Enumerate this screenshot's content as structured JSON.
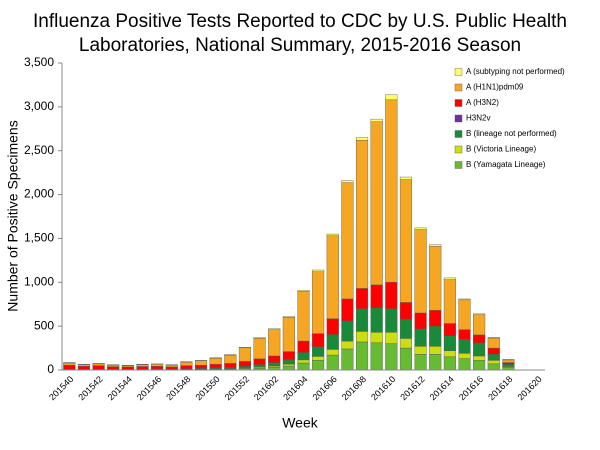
{
  "chart_data": {
    "type": "stacked-bar",
    "title": [
      "Influenza Positive Tests Reported to CDC by U.S. Public Health",
      "Laboratories, National Summary, 2015-2016 Season"
    ],
    "xlabel": "Week",
    "ylabel": "Number of Positive Specimens",
    "categories": [
      "201540",
      null,
      "201542",
      null,
      "201544",
      null,
      "201546",
      null,
      "201548",
      null,
      "201550",
      null,
      "201552",
      null,
      "201602",
      null,
      "201604",
      null,
      "201606",
      null,
      "201608",
      null,
      "201610",
      null,
      "201612",
      null,
      "201614",
      null,
      "201616",
      null,
      "201618",
      null,
      "201620"
    ],
    "ylim": [
      0,
      3500
    ],
    "yticks": [
      0,
      500,
      {
        "value": 1000,
        "label": "1,000"
      },
      {
        "value": 1500,
        "label": "1,500"
      },
      {
        "value": 2000,
        "label": "2,000"
      },
      {
        "value": 2500,
        "label": "2,500"
      },
      {
        "value": 3000,
        "label": "3,000"
      },
      {
        "value": 3500,
        "label": "3,500"
      }
    ],
    "legend": "top-right",
    "series": [
      {
        "name": "A (subtyping not performed)",
        "color": "#ffff66",
        "values": [
          5,
          4,
          5,
          4,
          3,
          3,
          3,
          3,
          5,
          5,
          5,
          5,
          7,
          8,
          10,
          10,
          15,
          20,
          20,
          25,
          30,
          30,
          60,
          30,
          20,
          20,
          20,
          10,
          10,
          5,
          5,
          0,
          0
        ]
      },
      {
        "name": "A (H1N1)pdm09",
        "color": "#f5a623",
        "values": [
          25,
          18,
          20,
          18,
          17,
          22,
          25,
          22,
          40,
          50,
          70,
          95,
          155,
          235,
          300,
          390,
          565,
          705,
          945,
          1325,
          1690,
          1860,
          2080,
          1400,
          950,
          730,
          500,
          340,
          230,
          115,
          30,
          0,
          0
        ]
      },
      {
        "name": "A (H3N2)",
        "color": "#ff0000",
        "values": [
          45,
          35,
          40,
          30,
          26,
          30,
          30,
          24,
          35,
          37,
          40,
          45,
          55,
          65,
          75,
          90,
          130,
          150,
          180,
          250,
          230,
          260,
          300,
          190,
          180,
          180,
          140,
          110,
          90,
          70,
          20,
          0,
          0
        ]
      },
      {
        "name": "H3N2v",
        "color": "#7030a0",
        "values": [
          0,
          0,
          0,
          0,
          0,
          0,
          0,
          0,
          0,
          0,
          0,
          0,
          0,
          0,
          0,
          0,
          0,
          0,
          0,
          0,
          0,
          0,
          0,
          0,
          0,
          0,
          0,
          0,
          0,
          0,
          0,
          0,
          0
        ]
      },
      {
        "name": "B (lineage not performed)",
        "color": "#1a8a3a",
        "values": [
          5,
          4,
          5,
          4,
          4,
          5,
          5,
          5,
          7,
          8,
          12,
          14,
          20,
          30,
          40,
          55,
          85,
          110,
          170,
          230,
          260,
          280,
          270,
          220,
          200,
          230,
          170,
          160,
          150,
          70,
          25,
          0,
          0
        ]
      },
      {
        "name": "B (Victoria Lineage)",
        "color": "#ccdd11",
        "values": [
          2,
          2,
          2,
          2,
          2,
          2,
          3,
          2,
          3,
          4,
          5,
          6,
          8,
          12,
          15,
          20,
          35,
          45,
          65,
          90,
          120,
          120,
          130,
          110,
          90,
          90,
          70,
          60,
          50,
          40,
          10,
          0,
          0
        ]
      },
      {
        "name": "B (Yamagata Lineage)",
        "color": "#66bb33",
        "values": [
          3,
          2,
          3,
          2,
          3,
          3,
          4,
          4,
          5,
          6,
          8,
          10,
          15,
          20,
          30,
          45,
          80,
          110,
          170,
          240,
          320,
          310,
          300,
          250,
          180,
          180,
          150,
          130,
          110,
          70,
          30,
          0,
          0
        ]
      }
    ]
  }
}
